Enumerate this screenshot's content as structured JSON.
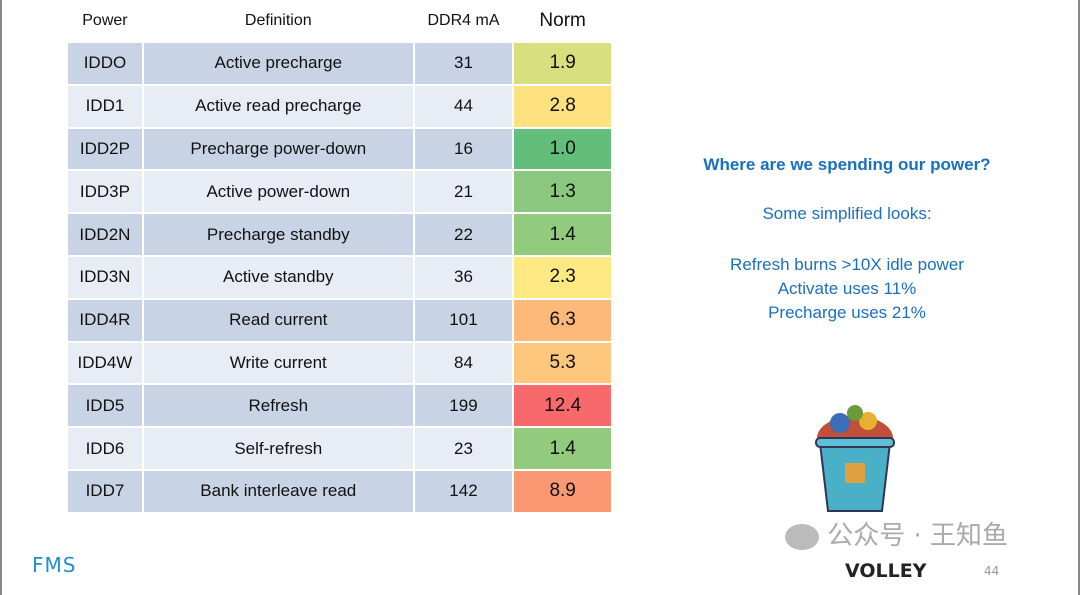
{
  "table": {
    "headers": [
      "Power",
      "Definition",
      "DDR4 mA",
      "Norm"
    ],
    "rows": [
      {
        "power": "IDDO",
        "definition": "Active precharge",
        "ma": "31",
        "norm": "1.9",
        "color": "#d7df7f"
      },
      {
        "power": "IDD1",
        "definition": "Active read precharge",
        "ma": "44",
        "norm": "2.8",
        "color": "#fde17f"
      },
      {
        "power": "IDD2P",
        "definition": "Precharge power-down",
        "ma": "16",
        "norm": "1.0",
        "color": "#63be7b"
      },
      {
        "power": "IDD3P",
        "definition": "Active power-down",
        "ma": "21",
        "norm": "1.3",
        "color": "#89c87e"
      },
      {
        "power": "IDD2N",
        "definition": "Precharge standby",
        "ma": "22",
        "norm": "1.4",
        "color": "#92cb7e"
      },
      {
        "power": "IDD3N",
        "definition": "Active standby",
        "ma": "36",
        "norm": "2.3",
        "color": "#fee983"
      },
      {
        "power": "IDD4R",
        "definition": "Read current",
        "ma": "101",
        "norm": "6.3",
        "color": "#fcb97a"
      },
      {
        "power": "IDD4W",
        "definition": "Write current",
        "ma": "84",
        "norm": "5.3",
        "color": "#fdc77d"
      },
      {
        "power": "IDD5",
        "definition": "Refresh",
        "ma": "199",
        "norm": "12.4",
        "color": "#f8696b"
      },
      {
        "power": "IDD6",
        "definition": "Self-refresh",
        "ma": "23",
        "norm": "1.4",
        "color": "#92cb7e"
      },
      {
        "power": "IDD7",
        "definition": "Bank interleave read",
        "ma": "142",
        "norm": "8.9",
        "color": "#fa9873"
      }
    ]
  },
  "side": {
    "question": "Where are we spending our power?",
    "subtitle": "Some simplified looks:",
    "points": [
      "Refresh burns >10X idle power",
      "Activate uses 11%",
      "Precharge uses 21%"
    ]
  },
  "footer": {
    "logo_left": "FMS",
    "logo_right": "VOLLEY",
    "watermark": "公众号 · 王知鱼",
    "page": "44"
  }
}
